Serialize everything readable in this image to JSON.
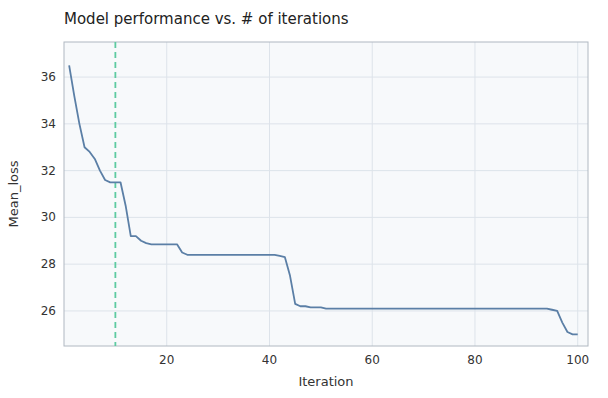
{
  "chart_data": {
    "type": "line",
    "title": "Model performance vs. # of iterations",
    "xlabel": "Iteration",
    "ylabel": "Mean_loss",
    "color": "#5b7fa6",
    "grid": true,
    "xlim": [
      0,
      102
    ],
    "ylim": [
      24.5,
      37.5
    ],
    "xticks": [
      20,
      40,
      60,
      80,
      100
    ],
    "yticks": [
      26,
      28,
      30,
      32,
      34,
      36
    ],
    "vline": {
      "x": 10,
      "color": "#5ecba1",
      "line_style": "dashed"
    },
    "x": [
      1,
      2,
      3,
      4,
      5,
      6,
      7,
      8,
      9,
      10,
      11,
      12,
      13,
      14,
      15,
      16,
      17,
      18,
      19,
      20,
      21,
      22,
      23,
      24,
      25,
      26,
      27,
      28,
      29,
      30,
      31,
      32,
      33,
      34,
      35,
      36,
      37,
      38,
      39,
      40,
      41,
      42,
      43,
      44,
      45,
      46,
      47,
      48,
      49,
      50,
      51,
      52,
      53,
      54,
      55,
      56,
      57,
      58,
      59,
      60,
      61,
      62,
      63,
      64,
      65,
      66,
      67,
      68,
      69,
      70,
      71,
      72,
      73,
      74,
      75,
      76,
      77,
      78,
      79,
      80,
      81,
      82,
      83,
      84,
      85,
      86,
      87,
      88,
      89,
      90,
      91,
      92,
      93,
      94,
      95,
      96,
      97,
      98,
      99,
      100
    ],
    "values": [
      36.5,
      35.2,
      34.0,
      33.0,
      32.8,
      32.5,
      32.0,
      31.6,
      31.5,
      31.5,
      31.5,
      30.5,
      29.2,
      29.2,
      29.0,
      28.9,
      28.85,
      28.85,
      28.85,
      28.85,
      28.85,
      28.85,
      28.5,
      28.4,
      28.4,
      28.4,
      28.4,
      28.4,
      28.4,
      28.4,
      28.4,
      28.4,
      28.4,
      28.4,
      28.4,
      28.4,
      28.4,
      28.4,
      28.4,
      28.4,
      28.4,
      28.35,
      28.3,
      27.5,
      26.3,
      26.2,
      26.2,
      26.15,
      26.15,
      26.15,
      26.1,
      26.1,
      26.1,
      26.1,
      26.1,
      26.1,
      26.1,
      26.1,
      26.1,
      26.1,
      26.1,
      26.1,
      26.1,
      26.1,
      26.1,
      26.1,
      26.1,
      26.1,
      26.1,
      26.1,
      26.1,
      26.1,
      26.1,
      26.1,
      26.1,
      26.1,
      26.1,
      26.1,
      26.1,
      26.1,
      26.1,
      26.1,
      26.1,
      26.1,
      26.1,
      26.1,
      26.1,
      26.1,
      26.1,
      26.1,
      26.1,
      26.1,
      26.1,
      26.1,
      26.05,
      26.0,
      25.5,
      25.1,
      25.0,
      25.0
    ]
  }
}
